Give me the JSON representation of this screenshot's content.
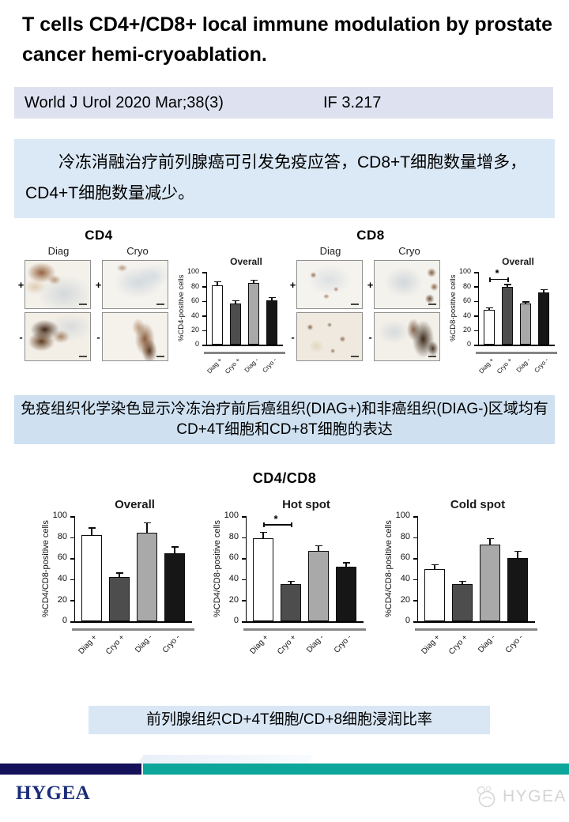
{
  "header": {
    "title": "T cells CD4+/CD8+ local immune modulation by prostate cancer hemi-cryoablation.",
    "journal": "World J Urol 2020 Mar;38(3)",
    "impact_factor": "IF 3.217"
  },
  "summary": {
    "text": "冷冻消融治疗前列腺癌可引发免疫应答，CD8+T细胞数量增多，CD4+T细胞数量减少。"
  },
  "captions": {
    "ihc": "免疫组织化学染色显示冷冻治疗前后癌组织(DIAG+)和非癌组织(DIAG-)区域均有CD+4T细胞和CD+8T细胞的表达",
    "ratio": "前列腺组织CD+4T细胞/CD+8细胞浸润比率"
  },
  "figure1": {
    "panels": [
      {
        "title": "CD4",
        "col_labels": [
          "Diag",
          "Cryo"
        ],
        "row_labels": [
          "+",
          "-"
        ]
      },
      {
        "title": "CD8",
        "col_labels": [
          "Diag",
          "Cryo"
        ],
        "row_labels": [
          "+",
          "-"
        ]
      }
    ]
  },
  "figure2": {
    "title": "CD4/CD8"
  },
  "footer": {
    "brand": "HYGEA",
    "watermark": "HYGEA"
  },
  "colors": {
    "bar_fills": [
      "#ffffff",
      "#4d4d4d",
      "#a9a9a9",
      "#161616"
    ],
    "navy": "#15115a",
    "teal": "#0da69a",
    "journal_bar_bg": "#dee2f0",
    "summary_bg": "#dbe9f6",
    "caption_bg": "#cfe1f1"
  },
  "chart_data": [
    {
      "id": "cd4_overall",
      "type": "bar",
      "size": "small",
      "title": "Overall",
      "ylabel": "%CD4-positive cells",
      "categories": [
        "Diag +",
        "Cryo +",
        "Diag -",
        "Cryo -"
      ],
      "values": [
        82,
        57,
        85,
        61
      ],
      "errors": [
        5,
        4,
        4,
        4
      ],
      "ylim": [
        0,
        100
      ],
      "yticks": [
        0,
        20,
        40,
        60,
        80,
        100
      ]
    },
    {
      "id": "cd8_overall",
      "type": "bar",
      "size": "small",
      "title": "Overall",
      "ylabel": "%CD8-positive cells",
      "categories": [
        "Diag +",
        "Cryo +",
        "Diag -",
        "Cryo -"
      ],
      "values": [
        48,
        79,
        56,
        72
      ],
      "errors": [
        3,
        4,
        3,
        4
      ],
      "ylim": [
        0,
        100
      ],
      "yticks": [
        0,
        20,
        40,
        60,
        80,
        100
      ],
      "significance": {
        "between": [
          0,
          1
        ],
        "label": "*"
      }
    },
    {
      "id": "ratio_overall",
      "type": "bar",
      "size": "big",
      "title": "Overall",
      "ylabel": "%CD4/CD8-positive cells",
      "categories": [
        "Diag +",
        "Cryo +",
        "Diag -",
        "Cryo -"
      ],
      "values": [
        82,
        42,
        84,
        65
      ],
      "errors": [
        7,
        4,
        10,
        6
      ],
      "ylim": [
        0,
        100
      ],
      "yticks": [
        0,
        20,
        40,
        60,
        80,
        100
      ]
    },
    {
      "id": "ratio_hotspot",
      "type": "bar",
      "size": "big",
      "title": "Hot spot",
      "ylabel": "%CD4/CD8-positive cells",
      "categories": [
        "Diag +",
        "Cryo +",
        "Diag -",
        "Cryo -"
      ],
      "values": [
        79,
        35,
        67,
        52
      ],
      "errors": [
        6,
        3,
        5,
        4
      ],
      "ylim": [
        0,
        100
      ],
      "yticks": [
        0,
        20,
        40,
        60,
        80,
        100
      ],
      "significance": {
        "between": [
          0,
          1
        ],
        "label": "*"
      }
    },
    {
      "id": "ratio_coldspot",
      "type": "bar",
      "size": "big",
      "title": "Cold spot",
      "ylabel": "%CD4/CD8-positive cells",
      "categories": [
        "Diag +",
        "Cryo +",
        "Diag -",
        "Cryo -"
      ],
      "values": [
        50,
        35,
        73,
        60
      ],
      "errors": [
        4,
        3,
        6,
        7
      ],
      "ylim": [
        0,
        100
      ],
      "yticks": [
        0,
        20,
        40,
        60,
        80,
        100
      ]
    }
  ]
}
